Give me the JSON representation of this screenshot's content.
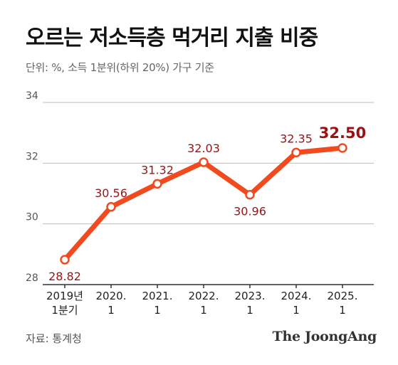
{
  "title": "오르는 저소득층 먹거리 지출 비중",
  "subtitle": "단위: %, 소득 1분위(하위 20%) 가구 기준",
  "source": "자료: 통계청",
  "brand": "The JoongAng",
  "colors": {
    "line": "#f04a1e",
    "label": "#9b1212",
    "grid": "#bdbdbd",
    "axis": "#333333",
    "tick": "#444444"
  },
  "chart_data": {
    "type": "line",
    "categories": [
      [
        "2019년",
        "1분기"
      ],
      [
        "2020.",
        "1"
      ],
      [
        "2021.",
        "1"
      ],
      [
        "2022.",
        "1"
      ],
      [
        "2023.",
        "1"
      ],
      [
        "2024.",
        "1"
      ],
      [
        "2025.",
        "1"
      ]
    ],
    "values": [
      28.82,
      30.56,
      31.32,
      32.03,
      30.96,
      32.35,
      32.5
    ],
    "data_labels": [
      "28.82",
      "30.56",
      "31.32",
      "32.03",
      "30.96",
      "32.35",
      "32.50"
    ],
    "yticks": [
      28,
      30,
      32,
      34
    ],
    "ylim": [
      28,
      34
    ],
    "grid": true,
    "highlight_last": true
  }
}
